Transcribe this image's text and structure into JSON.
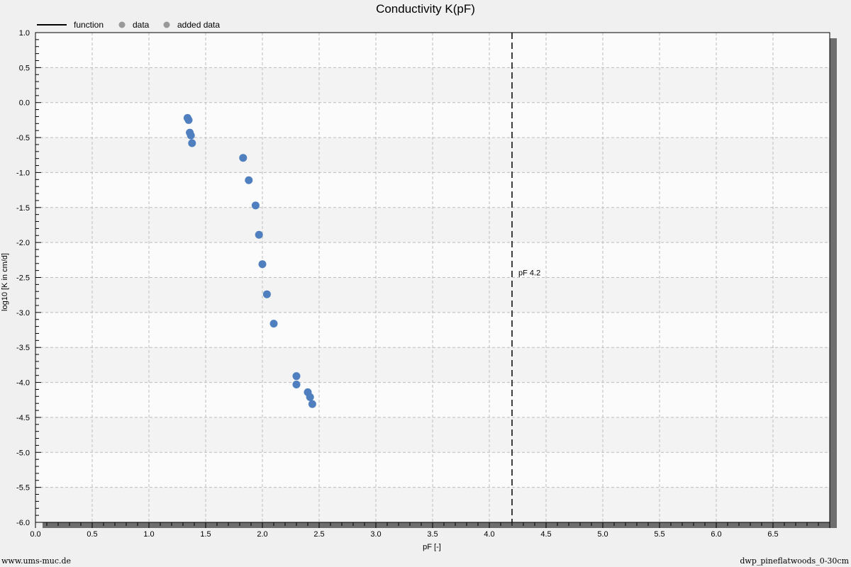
{
  "chart_data": {
    "type": "scatter",
    "title": "Conductivity K(pF)",
    "xlabel": "pF [-]",
    "ylabel": "log10 [K in cm/d]",
    "xlim": [
      0.0,
      7.0
    ],
    "ylim": [
      -6.0,
      1.0
    ],
    "x_ticks": [
      "0.0",
      "0.5",
      "1.0",
      "1.5",
      "2.0",
      "2.5",
      "3.0",
      "3.5",
      "4.0",
      "4.5",
      "5.0",
      "5.5",
      "6.0",
      "6.5"
    ],
    "y_ticks": [
      "1.0",
      "0.5",
      "0.0",
      "-0.5",
      "-1.0",
      "-1.5",
      "-2.0",
      "-2.5",
      "-3.0",
      "-3.5",
      "-4.0",
      "-4.5",
      "-5.0",
      "-5.5",
      "-6.0"
    ],
    "grid": true,
    "legend": {
      "position": "top-left",
      "items": [
        {
          "label": "function",
          "marker": "line",
          "color": "#000000"
        },
        {
          "label": "data",
          "marker": "dot",
          "color": "#999999"
        },
        {
          "label": "added data",
          "marker": "dot",
          "color": "#999999"
        }
      ]
    },
    "series": [
      {
        "type": "scatter",
        "color": "#4f7fbf",
        "points": [
          {
            "x": 1.34,
            "y": -0.22
          },
          {
            "x": 1.35,
            "y": -0.25
          },
          {
            "x": 1.36,
            "y": -0.43
          },
          {
            "x": 1.37,
            "y": -0.47
          },
          {
            "x": 1.38,
            "y": -0.58
          },
          {
            "x": 1.83,
            "y": -0.79
          },
          {
            "x": 1.88,
            "y": -1.11
          },
          {
            "x": 1.94,
            "y": -1.47
          },
          {
            "x": 1.97,
            "y": -1.89
          },
          {
            "x": 2.0,
            "y": -2.31
          },
          {
            "x": 2.04,
            "y": -2.74
          },
          {
            "x": 2.1,
            "y": -3.16
          },
          {
            "x": 2.3,
            "y": -3.91
          },
          {
            "x": 2.3,
            "y": -4.03
          },
          {
            "x": 2.4,
            "y": -4.14
          },
          {
            "x": 2.42,
            "y": -4.21
          },
          {
            "x": 2.44,
            "y": -4.31
          }
        ]
      }
    ],
    "annotations": [
      {
        "type": "vline",
        "x": 4.2,
        "label": "pF 4.2",
        "label_y": -2.43,
        "style": "dashed",
        "color": "#000000"
      }
    ]
  },
  "footer": {
    "left": "www.ums-muc.de",
    "right": "dwp_pineflatwoods_0-30cm"
  }
}
